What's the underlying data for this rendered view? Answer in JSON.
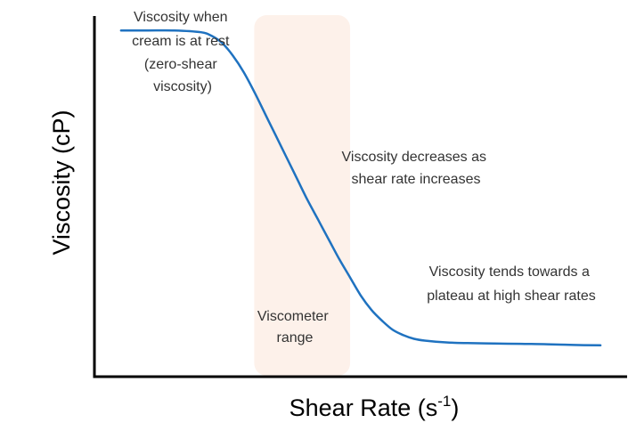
{
  "chart_data": {
    "type": "line",
    "title": "",
    "xlabel": "Shear Rate (s",
    "xlabel_superscript": "-1",
    "xlabel_suffix": ")",
    "ylabel": "Viscosity (cP)",
    "x_ticks_shown": false,
    "y_ticks_shown": false,
    "grid": false,
    "legend": "none",
    "xlim": [
      0,
      100
    ],
    "ylim": [
      0,
      100
    ],
    "series": [
      {
        "color": "#1f72c0",
        "x": [
          5,
          10,
          15,
          20,
          22,
          24,
          26,
          28,
          30,
          32,
          34,
          36,
          38,
          40,
          42,
          44,
          46,
          48,
          50,
          52,
          54,
          56,
          58,
          60,
          62,
          66,
          70,
          75,
          80,
          85,
          90,
          95
        ],
        "values": [
          96,
          96,
          96,
          95.5,
          94.5,
          92.5,
          89,
          84.5,
          79,
          73,
          67,
          61,
          55,
          49,
          43.5,
          38,
          32.5,
          27.5,
          22.5,
          18.5,
          15.5,
          13,
          11.5,
          10.5,
          10,
          9.5,
          9.3,
          9.2,
          9.1,
          9,
          8.8,
          8.7
        ]
      }
    ],
    "highlight_band": {
      "x_range": [
        30,
        48
      ],
      "color": "#fdf1ea",
      "label": [
        "Viscometer",
        "range"
      ]
    },
    "annotations": [
      {
        "lines": [
          "Viscosity when",
          "cream is at rest",
          "(zero-shear",
          "viscosity)"
        ]
      },
      {
        "lines": [
          "Viscosity decreases as",
          "shear rate increases"
        ]
      },
      {
        "lines": [
          "Viscosity tends towards a",
          "plateau at high shear rates"
        ]
      }
    ]
  }
}
